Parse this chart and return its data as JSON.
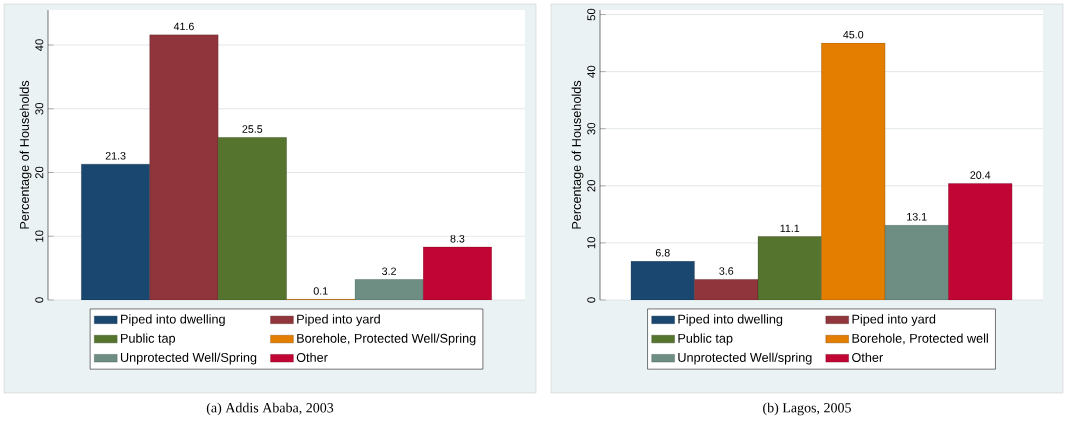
{
  "chart_data": [
    {
      "type": "bar",
      "categories": [
        null
      ],
      "ylabel": "Percentage of Households",
      "ylim": [
        0,
        45.5
      ],
      "yticks": [
        0,
        10,
        20,
        30,
        40
      ],
      "grid": "y",
      "legend": "bottom",
      "annotations": [
        "(a) Addis Ababa, 2003"
      ],
      "series": [
        {
          "name": "Piped into dwelling",
          "color": "#1a476f",
          "values": [
            21.3
          ],
          "value_labels": [
            "21.3"
          ]
        },
        {
          "name": "Piped into yard",
          "color": "#90353b",
          "values": [
            41.6
          ],
          "value_labels": [
            "41.6"
          ]
        },
        {
          "name": "Public tap",
          "color": "#55752f",
          "values": [
            25.5
          ],
          "value_labels": [
            "25.5"
          ]
        },
        {
          "name": "Borehole, Protected Well/Spring",
          "color": "#e37e00",
          "values": [
            0.1
          ],
          "value_labels": [
            "0.1"
          ]
        },
        {
          "name": "Unprotected Well/Spring",
          "color": "#6e8e84",
          "values": [
            3.2
          ],
          "value_labels": [
            "3.2"
          ]
        },
        {
          "name": "Other",
          "color": "#c10534",
          "values": [
            8.3
          ],
          "value_labels": [
            "8.3"
          ]
        }
      ]
    },
    {
      "type": "bar",
      "categories": [
        null
      ],
      "ylabel": "Percentage of Households",
      "ylim": [
        0,
        50.8
      ],
      "yticks": [
        0,
        10,
        20,
        30,
        40,
        50
      ],
      "grid": "y",
      "legend": "bottom",
      "annotations": [
        "(b) Lagos, 2005"
      ],
      "series": [
        {
          "name": "Piped into dwelling",
          "color": "#1a476f",
          "values": [
            6.8
          ],
          "value_labels": [
            "6.8"
          ]
        },
        {
          "name": "Piped into yard",
          "color": "#90353b",
          "values": [
            3.6
          ],
          "value_labels": [
            "3.6"
          ]
        },
        {
          "name": "Public tap",
          "color": "#55752f",
          "values": [
            11.1
          ],
          "value_labels": [
            "11.1"
          ]
        },
        {
          "name": "Borehole, Protected well",
          "color": "#e37e00",
          "values": [
            45.0
          ],
          "value_labels": [
            "45.0"
          ]
        },
        {
          "name": "Unprotected Well/spring",
          "color": "#6e8e84",
          "values": [
            13.1
          ],
          "value_labels": [
            "13.1"
          ]
        },
        {
          "name": "Other",
          "color": "#c10534",
          "values": [
            20.4
          ],
          "value_labels": [
            "20.4"
          ]
        }
      ]
    }
  ]
}
